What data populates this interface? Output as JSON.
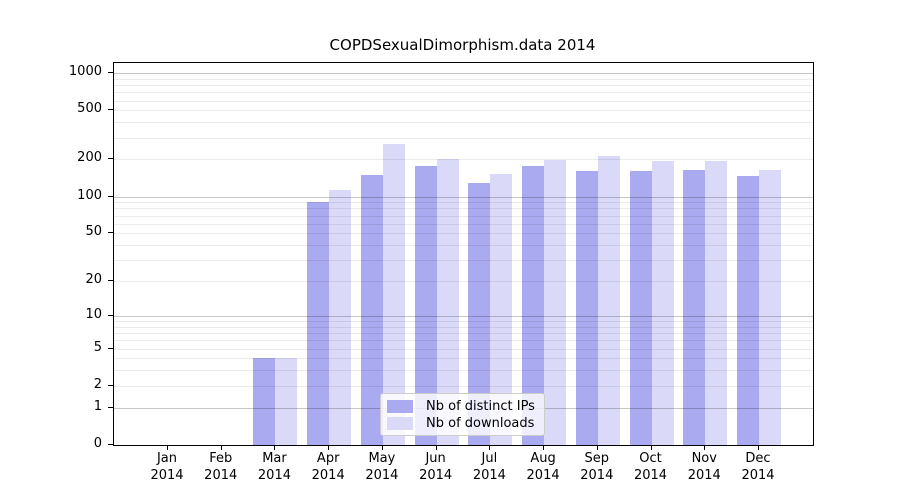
{
  "chart_data": {
    "type": "bar",
    "title": "COPDSexualDimorphism.data 2014",
    "x_axis": {
      "months": [
        {
          "month": "Jan",
          "year": "2014"
        },
        {
          "month": "Feb",
          "year": "2014"
        },
        {
          "month": "Mar",
          "year": "2014"
        },
        {
          "month": "Apr",
          "year": "2014"
        },
        {
          "month": "May",
          "year": "2014"
        },
        {
          "month": "Jun",
          "year": "2014"
        },
        {
          "month": "Jul",
          "year": "2014"
        },
        {
          "month": "Aug",
          "year": "2014"
        },
        {
          "month": "Sep",
          "year": "2014"
        },
        {
          "month": "Oct",
          "year": "2014"
        },
        {
          "month": "Nov",
          "year": "2014"
        },
        {
          "month": "Dec",
          "year": "2014"
        }
      ]
    },
    "y_axis": {
      "scale": "log1p",
      "ticks": [
        0,
        1,
        2,
        5,
        10,
        20,
        50,
        100,
        200,
        500,
        1000
      ],
      "ylim": [
        0,
        1200
      ],
      "grid": true
    },
    "series": [
      {
        "name": "Nb of distinct IPs",
        "color": "#aaaaf0",
        "values": [
          0,
          0,
          4,
          90,
          150,
          178,
          130,
          178,
          162,
          162,
          164,
          147
        ]
      },
      {
        "name": "Nb of downloads",
        "color": "#dadaf8",
        "values": [
          0,
          0,
          4,
          112,
          268,
          203,
          153,
          199,
          212,
          195,
          195,
          164
        ]
      }
    ],
    "legend_position": "lower center"
  },
  "colors": {
    "background": "#ffffff",
    "axis": "#000000",
    "text": "#000000",
    "legend_background": "rgba(255,255,255,0.8)",
    "legend_border": "#cccccc",
    "bar_distinct_ips": "#aaaaf0",
    "bar_downloads": "#dadaf8"
  }
}
